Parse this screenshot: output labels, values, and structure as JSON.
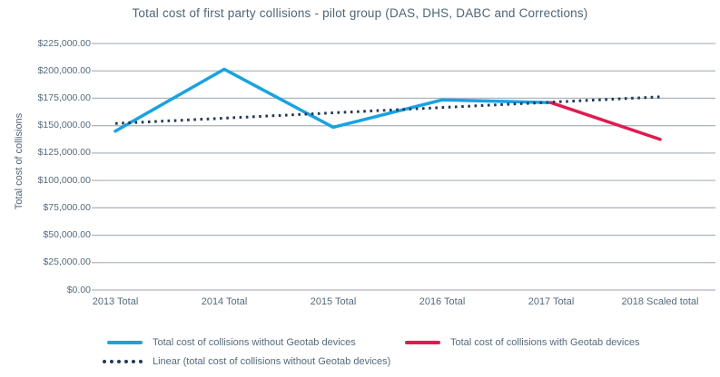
{
  "chart_data": {
    "type": "line",
    "title": "Total cost of first party collisions - pilot group (DAS, DHS, DABC and Corrections)",
    "y_axis_title": "Total cost of collisions",
    "ylim": [
      0,
      225000
    ],
    "ytick_step": 25000,
    "grid": true,
    "legend_position": "bottom",
    "yticks": [
      {
        "label": "$225,000.00",
        "value": 225000
      },
      {
        "label": "$200,000.00",
        "value": 200000
      },
      {
        "label": "$175,000.00",
        "value": 175000
      },
      {
        "label": "$150,000.00",
        "value": 150000
      },
      {
        "label": "$125,000.00",
        "value": 125000
      },
      {
        "label": "$100,000.00",
        "value": 100000
      },
      {
        "label": "$75,000.00",
        "value": 75000
      },
      {
        "label": "$50,000.00",
        "value": 50000
      },
      {
        "label": "$25,000.00",
        "value": 25000
      },
      {
        "label": "$0.00",
        "value": 0
      }
    ],
    "categories": [
      "2013 Total",
      "2014 Total",
      "2015 Total",
      "2016 Total",
      "2017 Total",
      "2018 Scaled total"
    ],
    "series": [
      {
        "name": "Total cost of collisions without Geotab devices",
        "color": "#17a3e3",
        "style": "solid",
        "values": [
          145000,
          201500,
          148500,
          173500,
          171000,
          null
        ]
      },
      {
        "name": "Total cost of collisions with Geotab devices",
        "color": "#e2194f",
        "style": "solid",
        "values": [
          null,
          null,
          null,
          null,
          171000,
          137500
        ]
      },
      {
        "name": "Linear (total cost of collisions without Geotab devices)",
        "color": "#21395a",
        "style": "dotted",
        "values": [
          152000,
          156860,
          161720,
          166580,
          171440,
          176300
        ]
      }
    ],
    "colors": {
      "grid": "#b0b8c0",
      "text": "#546b7c",
      "title_text": "#4e6577",
      "background": "#ffffff"
    }
  }
}
